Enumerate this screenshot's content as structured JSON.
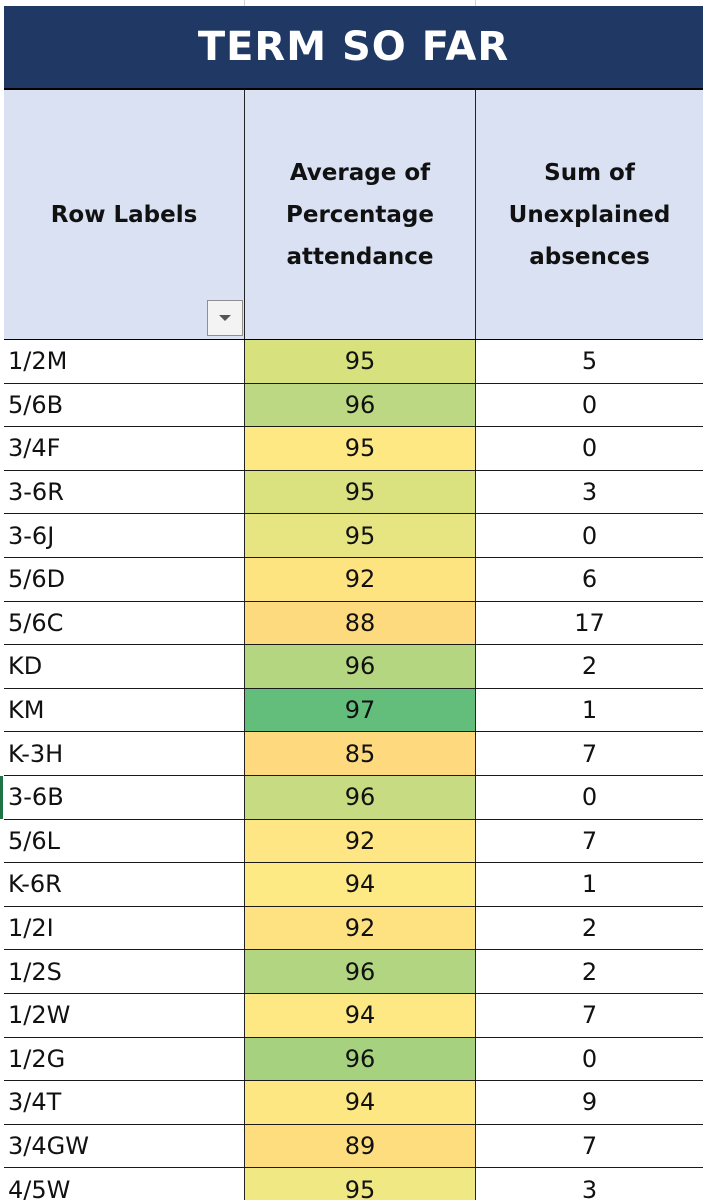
{
  "title": "TERM SO FAR",
  "headers": {
    "row_labels": "Row Labels",
    "avg_attendance": [
      "Average of",
      "Percentage",
      "attendance"
    ],
    "sum_unexplained": [
      "Sum of",
      "Unexplained",
      "absences"
    ]
  },
  "colors": {
    "title_bg": "#1f3864",
    "header_bg": "#d9e1f2",
    "selection_accent": "#217346"
  },
  "icons": {
    "filter": "dropdown-arrow"
  },
  "rows": [
    {
      "label": "1/2M",
      "pct": "95",
      "abs": "5",
      "color": "#d7e17e"
    },
    {
      "label": "5/6B",
      "pct": "96",
      "abs": "0",
      "color": "#bcd883"
    },
    {
      "label": "3/4F",
      "pct": "95",
      "abs": "0",
      "color": "#fde883"
    },
    {
      "label": "3-6R",
      "pct": "95",
      "abs": "3",
      "color": "#d9e27f"
    },
    {
      "label": "3-6J",
      "pct": "95",
      "abs": "0",
      "color": "#e6e581"
    },
    {
      "label": "5/6D",
      "pct": "92",
      "abs": "6",
      "color": "#fee381"
    },
    {
      "label": "5/6C",
      "pct": "88",
      "abs": "17",
      "color": "#feda7e"
    },
    {
      "label": "KD",
      "pct": "96",
      "abs": "2",
      "color": "#b5d680"
    },
    {
      "label": "KM",
      "pct": "97",
      "abs": "1",
      "color": "#63be7b"
    },
    {
      "label": "K-3H",
      "pct": "85",
      "abs": "7",
      "color": "#fed97d"
    },
    {
      "label": "3-6B",
      "pct": "96",
      "abs": "0",
      "color": "#c7dc82",
      "selected": true
    },
    {
      "label": "5/6L",
      "pct": "92",
      "abs": "7",
      "color": "#fde683"
    },
    {
      "label": "K-6R",
      "pct": "94",
      "abs": "1",
      "color": "#fdea84"
    },
    {
      "label": "1/2I",
      "pct": "92",
      "abs": "2",
      "color": "#fee282"
    },
    {
      "label": "1/2S",
      "pct": "96",
      "abs": "2",
      "color": "#b1d580"
    },
    {
      "label": "1/2W",
      "pct": "94",
      "abs": "7",
      "color": "#fde883"
    },
    {
      "label": "1/2G",
      "pct": "96",
      "abs": "0",
      "color": "#a6d27f"
    },
    {
      "label": "3/4T",
      "pct": "94",
      "abs": "9",
      "color": "#fde783"
    },
    {
      "label": "3/4GW",
      "pct": "89",
      "abs": "7",
      "color": "#fedd7f"
    },
    {
      "label": "4/5W",
      "pct": "95",
      "abs": "3",
      "color": "#f0e882"
    }
  ]
}
